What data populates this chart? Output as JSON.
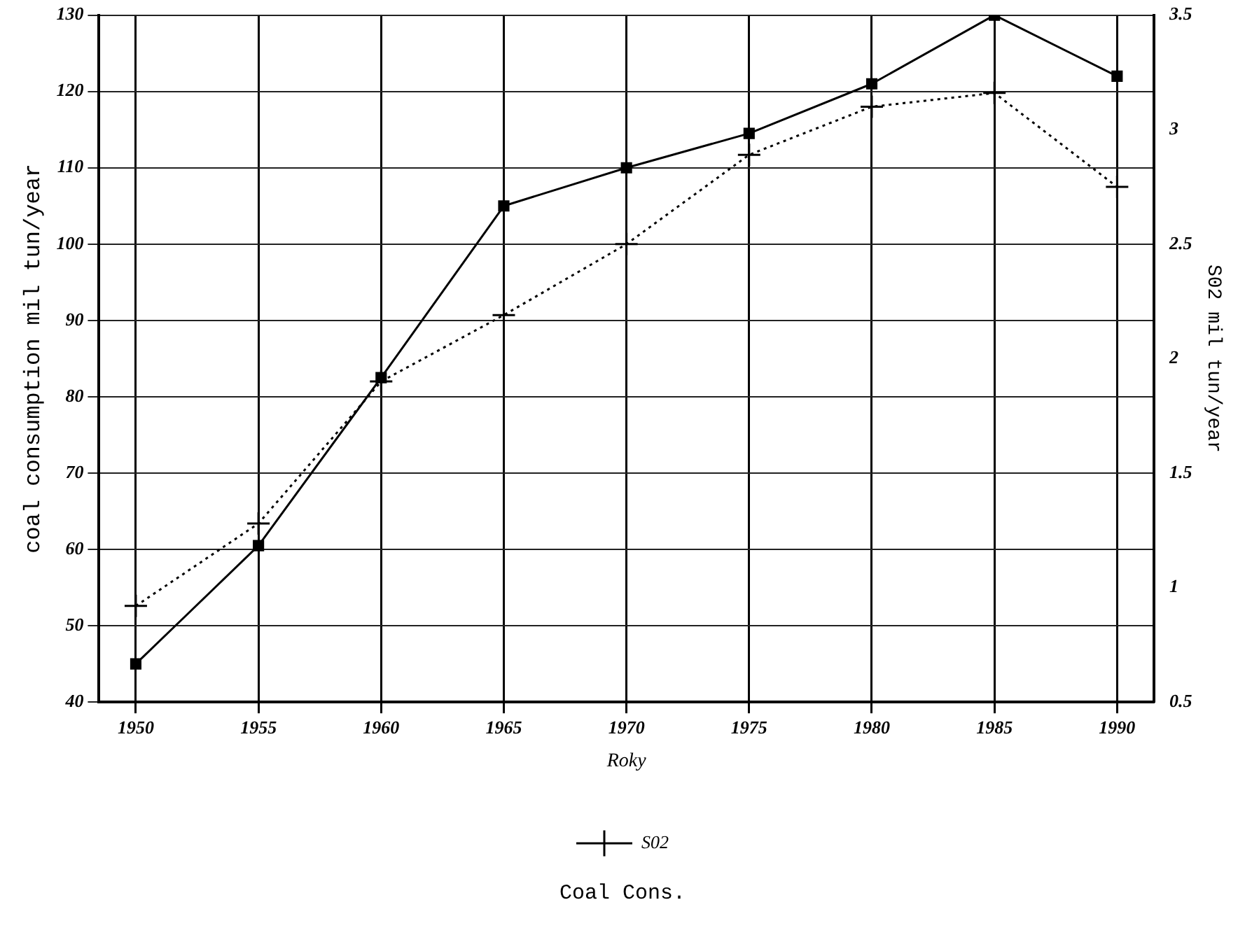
{
  "chart_data": {
    "type": "line",
    "title": "Coal Cons.",
    "xlabel": "Roky",
    "ylabel": "coal consumption mil tun/year",
    "y2label": "S02 mil tun/year",
    "x": [
      1950,
      1955,
      1960,
      1965,
      1970,
      1975,
      1980,
      1985,
      1990
    ],
    "xlim": [
      1948.5,
      1991.5
    ],
    "xticks": [
      1950,
      1955,
      1960,
      1965,
      1970,
      1975,
      1980,
      1985,
      1990
    ],
    "ylim": [
      40,
      130
    ],
    "yticks": [
      40,
      50,
      60,
      70,
      80,
      90,
      100,
      110,
      120,
      130
    ],
    "y2lim": [
      0.5,
      3.5
    ],
    "y2ticks": [
      0.5,
      1,
      1.5,
      2,
      2.5,
      3,
      3.5
    ],
    "grid": true,
    "legend": "bottom",
    "series": [
      {
        "color": "#000000",
        "marker": "square",
        "line_style": "solid",
        "values": [
          45,
          60.5,
          82.5,
          105,
          110,
          114.5,
          121,
          130,
          122
        ]
      },
      {
        "name": "S02",
        "color": "#000000",
        "marker": "cross",
        "line_style": "dotted",
        "axis": "y2",
        "values": [
          0.92,
          1.28,
          1.9,
          2.19,
          2.5,
          2.89,
          3.1,
          3.16,
          2.75
        ]
      }
    ]
  }
}
